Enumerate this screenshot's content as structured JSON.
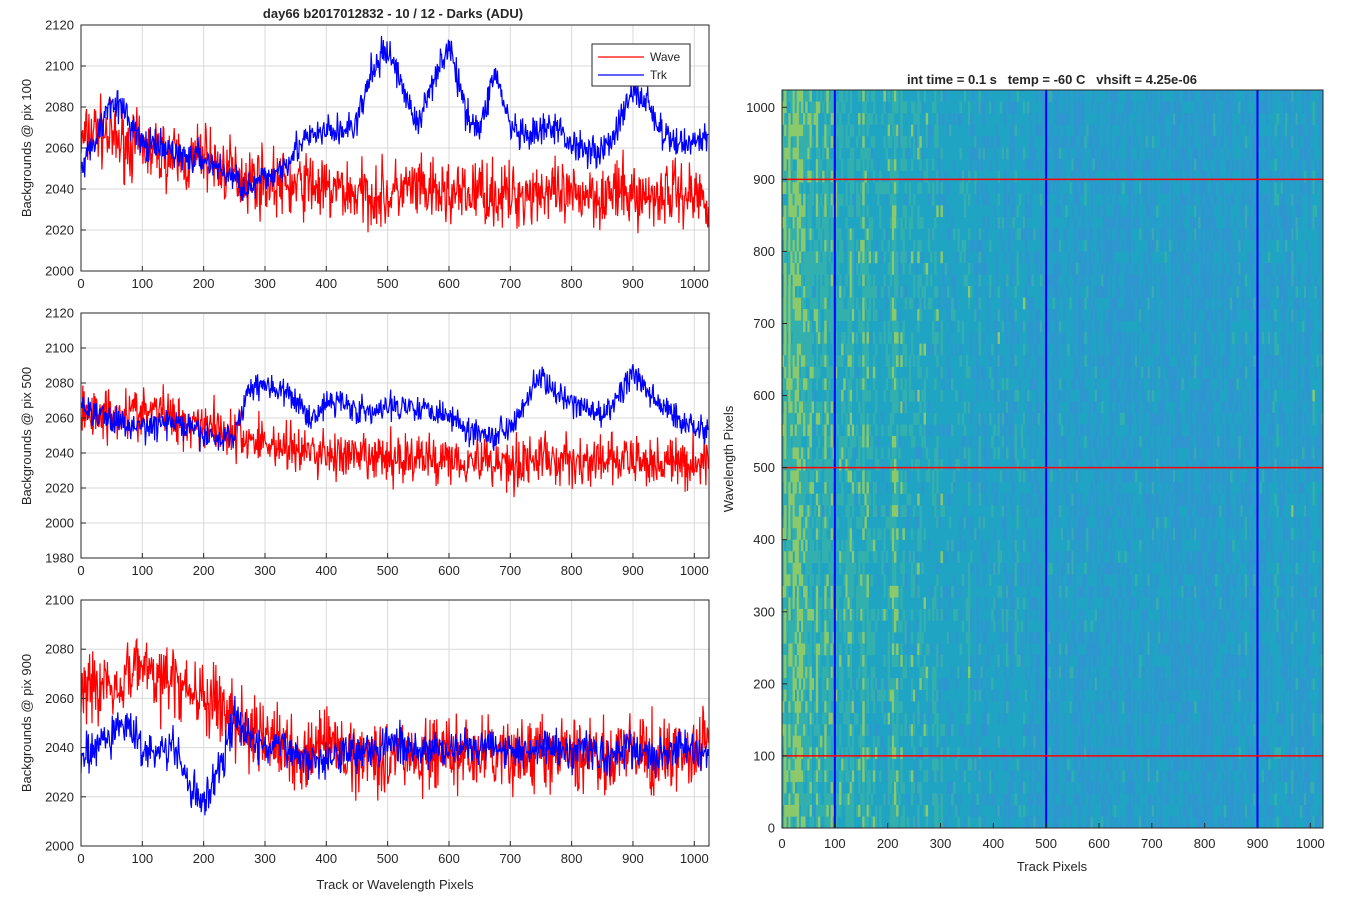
{
  "figure": {
    "suptitle": "day66 b2017012832 - 10 / 12 - Darks (ADU)"
  },
  "colors": {
    "wave": "#ff0000",
    "trk": "#0000ff",
    "grid": "#d9d9d9",
    "axis": "#262626"
  },
  "chart_data": [
    {
      "type": "line",
      "ylabel": "Backgrounds @ pix 100",
      "xlabel": "",
      "xlim": [
        0,
        1024
      ],
      "ylim": [
        2000,
        2120
      ],
      "xticks": [
        "0",
        "100",
        "200",
        "300",
        "400",
        "500",
        "600",
        "700",
        "800",
        "900",
        "1000"
      ],
      "yticks": [
        "2000",
        "2020",
        "2040",
        "2060",
        "2080",
        "2100",
        "2120"
      ],
      "grid": true,
      "legend": {
        "position": "top-right",
        "entries": [
          "Wave",
          "Trk"
        ]
      },
      "series": [
        {
          "name": "Wave",
          "color": "#ff0000",
          "x": [
            0,
            25,
            50,
            75,
            100,
            125,
            150,
            175,
            200,
            225,
            250,
            275,
            300,
            325,
            350,
            375,
            400,
            425,
            450,
            475,
            500,
            525,
            550,
            575,
            600,
            625,
            650,
            675,
            700,
            725,
            750,
            775,
            800,
            825,
            850,
            875,
            900,
            925,
            950,
            975,
            1000,
            1023
          ],
          "y": [
            2062,
            2070,
            2064,
            2062,
            2060,
            2058,
            2056,
            2052,
            2058,
            2050,
            2048,
            2045,
            2044,
            2042,
            2041,
            2043,
            2038,
            2040,
            2037,
            2038,
            2036,
            2040,
            2039,
            2037,
            2038,
            2036,
            2040,
            2037,
            2036,
            2038,
            2040,
            2036,
            2035,
            2039,
            2037,
            2038,
            2037,
            2036,
            2038,
            2039,
            2037,
            2036
          ],
          "noise": 14
        },
        {
          "name": "Trk",
          "color": "#0000ff",
          "x": [
            0,
            25,
            50,
            75,
            100,
            125,
            150,
            175,
            200,
            225,
            250,
            275,
            300,
            325,
            350,
            375,
            400,
            425,
            450,
            475,
            500,
            525,
            550,
            575,
            600,
            625,
            650,
            675,
            700,
            725,
            750,
            775,
            800,
            825,
            850,
            875,
            900,
            925,
            950,
            975,
            1000,
            1023
          ],
          "y": [
            2050,
            2065,
            2085,
            2075,
            2062,
            2060,
            2058,
            2055,
            2055,
            2050,
            2045,
            2040,
            2045,
            2050,
            2060,
            2065,
            2068,
            2068,
            2072,
            2098,
            2108,
            2090,
            2070,
            2095,
            2110,
            2080,
            2068,
            2098,
            2070,
            2064,
            2068,
            2070,
            2062,
            2060,
            2058,
            2070,
            2088,
            2082,
            2065,
            2062,
            2064,
            2065
          ],
          "noise": 7
        }
      ]
    },
    {
      "type": "line",
      "ylabel": "Backgrounds @ pix 500",
      "xlabel": "",
      "xlim": [
        0,
        1024
      ],
      "ylim": [
        1980,
        2120
      ],
      "xticks": [
        "0",
        "100",
        "200",
        "300",
        "400",
        "500",
        "600",
        "700",
        "800",
        "900",
        "1000"
      ],
      "yticks": [
        "1980",
        "2000",
        "2020",
        "2040",
        "2060",
        "2080",
        "2100",
        "2120"
      ],
      "grid": true,
      "series": [
        {
          "name": "Wave",
          "color": "#ff0000",
          "x": [
            0,
            25,
            50,
            75,
            100,
            125,
            150,
            175,
            200,
            225,
            250,
            275,
            300,
            325,
            350,
            375,
            400,
            425,
            450,
            475,
            500,
            525,
            550,
            575,
            600,
            625,
            650,
            675,
            700,
            725,
            750,
            775,
            800,
            825,
            850,
            875,
            900,
            925,
            950,
            975,
            1000,
            1023
          ],
          "y": [
            2062,
            2064,
            2062,
            2064,
            2062,
            2065,
            2060,
            2058,
            2058,
            2055,
            2050,
            2048,
            2046,
            2044,
            2042,
            2040,
            2040,
            2038,
            2036,
            2037,
            2036,
            2038,
            2037,
            2036,
            2038,
            2036,
            2036,
            2035,
            2034,
            2036,
            2037,
            2035,
            2036,
            2034,
            2035,
            2036,
            2035,
            2034,
            2036,
            2033,
            2034,
            2035
          ],
          "noise": 13
        },
        {
          "name": "Trk",
          "color": "#0000ff",
          "x": [
            0,
            25,
            50,
            75,
            100,
            125,
            150,
            175,
            200,
            225,
            250,
            275,
            300,
            325,
            350,
            375,
            400,
            425,
            450,
            475,
            500,
            525,
            550,
            575,
            600,
            625,
            650,
            675,
            700,
            725,
            750,
            775,
            800,
            825,
            850,
            875,
            900,
            925,
            950,
            975,
            1000,
            1023
          ],
          "y": [
            2068,
            2062,
            2060,
            2055,
            2055,
            2056,
            2058,
            2054,
            2050,
            2048,
            2050,
            2078,
            2080,
            2075,
            2070,
            2060,
            2068,
            2070,
            2065,
            2062,
            2066,
            2068,
            2066,
            2065,
            2062,
            2054,
            2052,
            2050,
            2056,
            2070,
            2085,
            2072,
            2068,
            2066,
            2060,
            2072,
            2086,
            2074,
            2066,
            2060,
            2055,
            2054
          ],
          "noise": 7
        }
      ]
    },
    {
      "type": "line",
      "ylabel": "Backgrounds @ pix 900",
      "xlabel": "Track or Wavelength Pixels",
      "xlim": [
        0,
        1024
      ],
      "ylim": [
        2000,
        2100
      ],
      "xticks": [
        "0",
        "100",
        "200",
        "300",
        "400",
        "500",
        "600",
        "700",
        "800",
        "900",
        "1000"
      ],
      "yticks": [
        "2000",
        "2020",
        "2040",
        "2060",
        "2080",
        "2100"
      ],
      "grid": true,
      "series": [
        {
          "name": "Wave",
          "color": "#ff0000",
          "x": [
            0,
            25,
            50,
            75,
            100,
            125,
            150,
            175,
            200,
            225,
            250,
            275,
            300,
            325,
            350,
            375,
            400,
            425,
            450,
            475,
            500,
            525,
            550,
            575,
            600,
            625,
            650,
            675,
            700,
            725,
            750,
            775,
            800,
            825,
            850,
            875,
            900,
            925,
            950,
            975,
            1000,
            1023
          ],
          "y": [
            2068,
            2064,
            2066,
            2070,
            2074,
            2068,
            2066,
            2064,
            2060,
            2056,
            2052,
            2046,
            2044,
            2040,
            2038,
            2038,
            2042,
            2038,
            2037,
            2038,
            2037,
            2038,
            2036,
            2037,
            2038,
            2037,
            2036,
            2037,
            2036,
            2037,
            2038,
            2036,
            2037,
            2037,
            2036,
            2038,
            2037,
            2036,
            2037,
            2038,
            2037,
            2044
          ],
          "noise": 13
        },
        {
          "name": "Trk",
          "color": "#0000ff",
          "x": [
            0,
            25,
            50,
            75,
            100,
            125,
            150,
            175,
            200,
            225,
            250,
            275,
            300,
            325,
            350,
            375,
            400,
            425,
            450,
            475,
            500,
            525,
            550,
            575,
            600,
            625,
            650,
            675,
            700,
            725,
            750,
            775,
            800,
            825,
            850,
            875,
            900,
            925,
            950,
            975,
            1000,
            1023
          ],
          "y": [
            2035,
            2040,
            2045,
            2050,
            2040,
            2038,
            2040,
            2025,
            2018,
            2030,
            2052,
            2045,
            2040,
            2040,
            2038,
            2035,
            2036,
            2040,
            2038,
            2040,
            2042,
            2040,
            2038,
            2040,
            2038,
            2040,
            2040,
            2042,
            2040,
            2038,
            2042,
            2040,
            2038,
            2040,
            2036,
            2038,
            2040,
            2036,
            2038,
            2040,
            2038,
            2036
          ],
          "noise": 7
        }
      ]
    },
    {
      "type": "heatmap",
      "title": "int time = 0.1 s   temp = -60 C   vhsift = 4.25e-06",
      "xlabel": "Track Pixels",
      "ylabel": "Wavelength Pixels",
      "xlim": [
        0,
        1024
      ],
      "ylim": [
        0,
        1024
      ],
      "xticks": [
        "0",
        "100",
        "200",
        "300",
        "400",
        "500",
        "600",
        "700",
        "800",
        "900",
        "1000"
      ],
      "yticks": [
        "0",
        "100",
        "200",
        "300",
        "400",
        "500",
        "600",
        "700",
        "800",
        "900",
        "1000"
      ],
      "colormap": [
        "#2f96cf",
        "#1fa4c4",
        "#33b0ad",
        "#8cc96a"
      ],
      "vertical_markers": {
        "color": "#0000ff",
        "x": [
          100,
          500,
          900
        ]
      },
      "horizontal_markers": {
        "color": "#ff0000",
        "y": [
          100,
          500,
          900
        ]
      }
    }
  ]
}
